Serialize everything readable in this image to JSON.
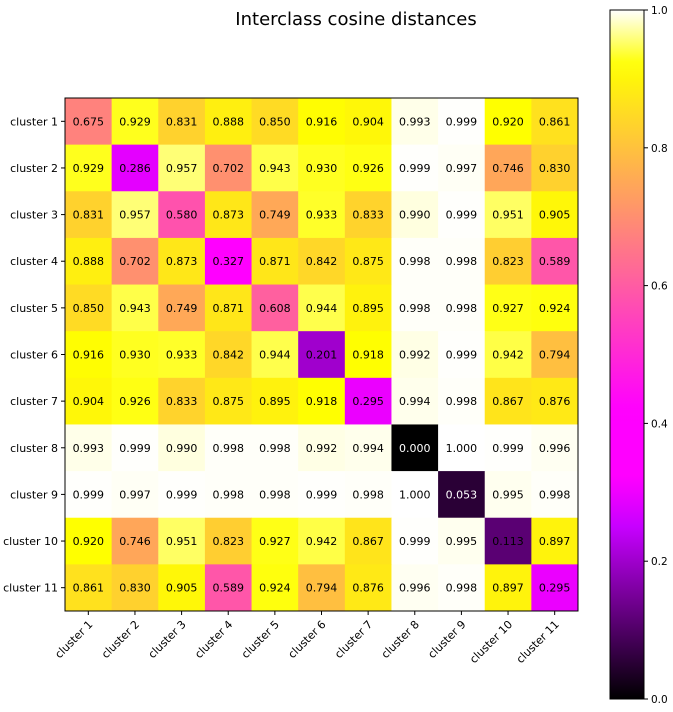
{
  "chart_data": {
    "type": "heatmap",
    "title": "Interclass cosine distances",
    "xlabel": "",
    "ylabel": "",
    "x_categories": [
      "cluster 1",
      "cluster 2",
      "cluster 3",
      "cluster 4",
      "cluster 5",
      "cluster 6",
      "cluster 7",
      "cluster 8",
      "cluster 9",
      "cluster 10",
      "cluster 11"
    ],
    "y_categories": [
      "cluster 1",
      "cluster 2",
      "cluster 3",
      "cluster 4",
      "cluster 5",
      "cluster 6",
      "cluster 7",
      "cluster 8",
      "cluster 9",
      "cluster 10",
      "cluster 11"
    ],
    "values": [
      [
        0.675,
        0.929,
        0.831,
        0.888,
        0.85,
        0.916,
        0.904,
        0.993,
        0.999,
        0.92,
        0.861
      ],
      [
        0.929,
        0.286,
        0.957,
        0.702,
        0.943,
        0.93,
        0.926,
        0.999,
        0.997,
        0.746,
        0.83
      ],
      [
        0.831,
        0.957,
        0.58,
        0.873,
        0.749,
        0.933,
        0.833,
        0.99,
        0.999,
        0.951,
        0.905
      ],
      [
        0.888,
        0.702,
        0.873,
        0.327,
        0.871,
        0.842,
        0.875,
        0.998,
        0.998,
        0.823,
        0.589
      ],
      [
        0.85,
        0.943,
        0.749,
        0.871,
        0.608,
        0.944,
        0.895,
        0.998,
        0.998,
        0.927,
        0.924
      ],
      [
        0.916,
        0.93,
        0.933,
        0.842,
        0.944,
        0.201,
        0.918,
        0.992,
        0.999,
        0.942,
        0.794
      ],
      [
        0.904,
        0.926,
        0.833,
        0.875,
        0.895,
        0.918,
        0.295,
        0.994,
        0.998,
        0.867,
        0.876
      ],
      [
        0.993,
        0.999,
        0.99,
        0.998,
        0.998,
        0.992,
        0.994,
        0.0,
        1.0,
        0.999,
        0.996
      ],
      [
        0.999,
        0.997,
        0.999,
        0.998,
        0.998,
        0.999,
        0.998,
        1.0,
        0.053,
        0.995,
        0.998
      ],
      [
        0.92,
        0.746,
        0.951,
        0.823,
        0.927,
        0.942,
        0.867,
        0.999,
        0.995,
        0.113,
        0.897
      ],
      [
        0.861,
        0.83,
        0.905,
        0.589,
        0.924,
        0.794,
        0.876,
        0.996,
        0.998,
        0.897,
        0.295
      ]
    ],
    "value_format": "0.000",
    "colormap": "gnuplot2",
    "colorbar": {
      "range": [
        0,
        1
      ],
      "ticks": [
        0.0,
        0.2,
        0.4,
        0.6,
        0.8,
        1.0
      ],
      "tick_labels": [
        "0.0",
        "0.2",
        "0.4",
        "0.6",
        "0.8",
        "1.0"
      ]
    },
    "grid": false
  }
}
